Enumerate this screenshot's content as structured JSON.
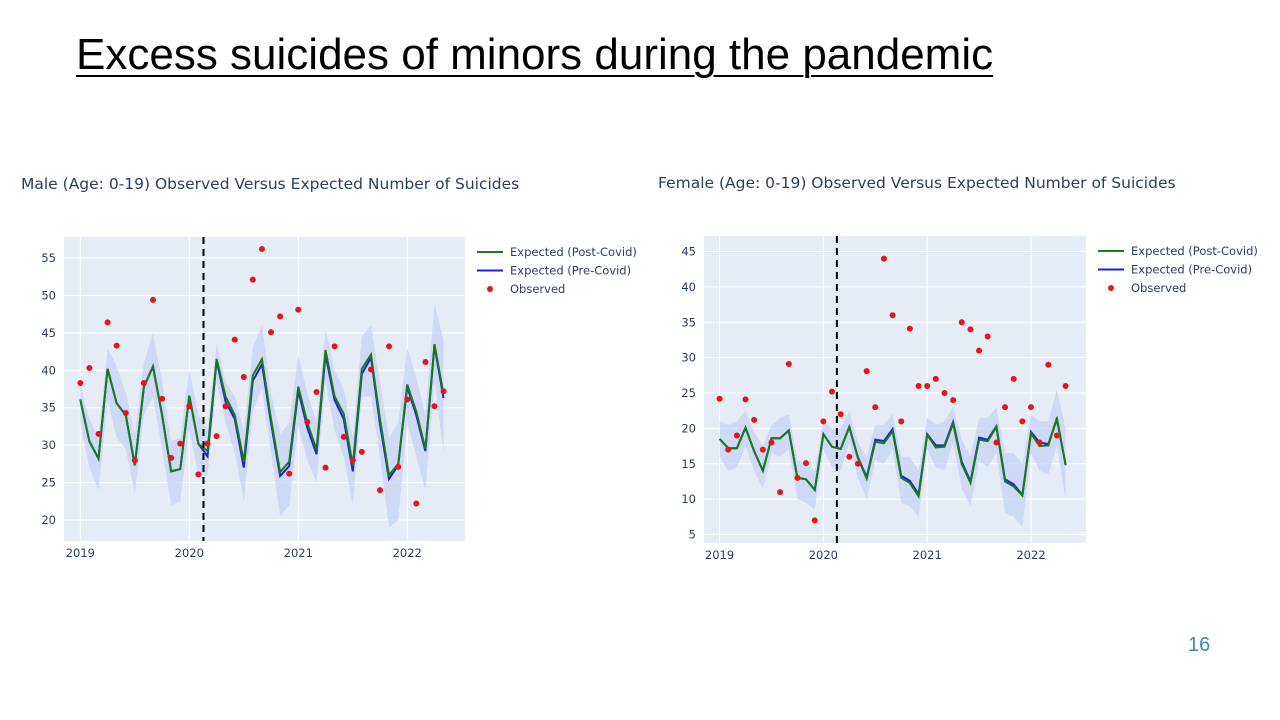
{
  "slide": {
    "title": "Excess suicides of minors during the pandemic",
    "page_number": "16"
  },
  "colors": {
    "plot_bg": "#e5ecf6",
    "grid": "#ffffff",
    "band": "#c6d3f5",
    "post_covid": "#1a7a1a",
    "pre_covid": "#1f1fd8",
    "observed": "#e8141a",
    "text": "#2a3f5f"
  },
  "chart_data": [
    {
      "type": "line",
      "title": "Male (Age: 0-19) Observed Versus Expected Number of Suicides",
      "x_ticks": [
        "2019",
        "2020",
        "2021",
        "2022"
      ],
      "y_ticks": [
        20,
        25,
        30,
        35,
        40,
        45,
        50,
        55
      ],
      "xlim": [
        2018.85,
        2022.53
      ],
      "ylim": [
        17.2,
        57.8
      ],
      "covid_start": 2020.13,
      "legend_position": "right",
      "grid": true,
      "x": [
        2019.0,
        2019.083,
        2019.167,
        2019.25,
        2019.333,
        2019.417,
        2019.5,
        2019.583,
        2019.667,
        2019.75,
        2019.833,
        2019.917,
        2020.0,
        2020.083,
        2020.167,
        2020.25,
        2020.333,
        2020.417,
        2020.5,
        2020.583,
        2020.667,
        2020.75,
        2020.833,
        2020.917,
        2021.0,
        2021.083,
        2021.167,
        2021.25,
        2021.333,
        2021.417,
        2021.5,
        2021.583,
        2021.667,
        2021.75,
        2021.833,
        2021.917,
        2022.0,
        2022.083,
        2022.167,
        2022.25,
        2022.333
      ],
      "series": [
        {
          "name": "Expected (Post-Covid)",
          "values": [
            36.1,
            30.5,
            28.2,
            40.2,
            35.6,
            34.0,
            27.3,
            37.8,
            40.5,
            34.0,
            26.5,
            26.8,
            36.6,
            30.2,
            29.2,
            41.5,
            36.5,
            34.0,
            27.8,
            39.3,
            41.5,
            33.5,
            26.4,
            27.8,
            37.8,
            33.0,
            29.4,
            42.7,
            36.5,
            34.2,
            27.3,
            40.2,
            42.1,
            33.5,
            26.0,
            27.5,
            38.1,
            34.5,
            29.5,
            43.5,
            36.8
          ]
        },
        {
          "name": "Expected (Pre-Covid)",
          "values": [
            36.1,
            30.5,
            28.2,
            40.2,
            35.6,
            34.0,
            27.3,
            37.8,
            40.5,
            34.0,
            26.5,
            26.8,
            36.6,
            30.2,
            28.5,
            41.3,
            35.8,
            33.5,
            27.0,
            38.6,
            40.8,
            33.0,
            25.9,
            27.2,
            37.3,
            32.3,
            28.8,
            42.1,
            36.0,
            33.5,
            26.5,
            39.5,
            41.7,
            32.8,
            25.5,
            27.3,
            37.8,
            34.0,
            29.2,
            43.3,
            36.3
          ]
        },
        {
          "name": "Observed",
          "values": [
            38.3,
            40.3,
            31.5,
            46.4,
            43.3,
            34.3,
            28.0,
            38.3,
            49.4,
            36.2,
            28.3,
            30.2,
            35.2,
            26.1,
            30.2,
            31.2,
            35.2,
            44.1,
            39.1,
            52.1,
            56.2,
            45.1,
            47.2,
            26.2,
            48.1,
            33.1,
            37.1,
            27.0,
            43.2,
            31.1,
            28.0,
            29.1,
            40.1,
            24.0,
            43.2,
            27.1,
            36.1,
            22.2,
            41.1,
            35.2,
            37.2
          ]
        }
      ],
      "band_upper": [
        38.0,
        33.5,
        31.0,
        43.0,
        40.5,
        37.0,
        31.5,
        41.0,
        45.0,
        38.5,
        30.5,
        31.0,
        40.0,
        34.0,
        32.0,
        43.5,
        38.5,
        36.5,
        32.0,
        43.0,
        46.0,
        37.0,
        31.5,
        33.0,
        42.0,
        37.0,
        33.0,
        45.5,
        40.0,
        37.5,
        31.0,
        44.5,
        46.0,
        38.5,
        31.0,
        33.0,
        43.0,
        39.0,
        34.0,
        49.0,
        44.0
      ],
      "band_lower": [
        33.0,
        27.0,
        24.0,
        36.0,
        31.0,
        29.5,
        23.5,
        34.0,
        36.5,
        29.5,
        22.0,
        22.5,
        32.0,
        26.0,
        26.0,
        38.5,
        33.0,
        29.0,
        22.5,
        34.5,
        37.5,
        29.0,
        20.5,
        22.0,
        32.5,
        28.0,
        25.0,
        38.5,
        32.0,
        28.5,
        22.0,
        36.5,
        36.5,
        28.5,
        19.0,
        20.0,
        33.0,
        28.5,
        24.0,
        38.5,
        29.0
      ]
    },
    {
      "type": "line",
      "title": "Female (Age: 0-19) Observed Versus Expected Number of Suicides",
      "x_ticks": [
        "2019",
        "2020",
        "2021",
        "2022"
      ],
      "y_ticks": [
        5,
        10,
        15,
        20,
        25,
        30,
        35,
        40,
        45
      ],
      "xlim": [
        2018.85,
        2022.53
      ],
      "ylim": [
        3.8,
        47.2
      ],
      "covid_start": 2020.13,
      "legend_position": "right",
      "grid": true,
      "x": [
        2019.0,
        2019.083,
        2019.167,
        2019.25,
        2019.333,
        2019.417,
        2019.5,
        2019.583,
        2019.667,
        2019.75,
        2019.833,
        2019.917,
        2020.0,
        2020.083,
        2020.167,
        2020.25,
        2020.333,
        2020.417,
        2020.5,
        2020.583,
        2020.667,
        2020.75,
        2020.833,
        2020.917,
        2021.0,
        2021.083,
        2021.167,
        2021.25,
        2021.333,
        2021.417,
        2021.5,
        2021.583,
        2021.667,
        2021.75,
        2021.833,
        2021.917,
        2022.0,
        2022.083,
        2022.167,
        2022.25,
        2022.333
      ],
      "series": [
        {
          "name": "Expected (Post-Covid)",
          "values": [
            18.5,
            17.2,
            17.2,
            20.1,
            16.8,
            14.0,
            18.6,
            18.6,
            19.7,
            13.0,
            12.8,
            11.3,
            19.2,
            17.4,
            17.1,
            20.2,
            15.8,
            12.9,
            18.1,
            17.9,
            19.6,
            13.0,
            12.3,
            10.4,
            19.1,
            17.3,
            17.4,
            20.7,
            15.0,
            12.3,
            18.4,
            18.2,
            20.2,
            12.5,
            11.8,
            10.5,
            19.3,
            17.5,
            17.6,
            21.5,
            14.8
          ]
        },
        {
          "name": "Expected (Pre-Covid)",
          "values": [
            18.5,
            17.2,
            17.2,
            20.1,
            16.8,
            14.0,
            18.6,
            18.6,
            19.7,
            13.0,
            12.8,
            11.3,
            19.2,
            17.4,
            17.1,
            20.2,
            15.9,
            13.1,
            18.4,
            18.2,
            19.9,
            13.3,
            12.6,
            10.7,
            19.2,
            17.6,
            17.6,
            20.9,
            15.3,
            12.5,
            18.7,
            18.4,
            20.3,
            12.8,
            12.1,
            10.6,
            19.5,
            18.0,
            17.8,
            21.3,
            14.9
          ]
        },
        {
          "name": "Observed",
          "values": [
            24.2,
            17.0,
            19.0,
            24.1,
            21.2,
            17.0,
            18.0,
            11.0,
            29.1,
            13.0,
            15.1,
            7.0,
            21.0,
            25.2,
            22.0,
            16.0,
            15.0,
            28.1,
            23.0,
            44.0,
            36.0,
            21.0,
            34.1,
            26.0,
            26.0,
            27.0,
            25.0,
            24.0,
            35.0,
            34.0,
            31.0,
            33.0,
            18.0,
            23.0,
            27.0,
            21.0,
            23.0,
            18.0,
            29.0,
            19.0,
            26.0
          ]
        }
      ],
      "band_upper": [
        21.0,
        20.5,
        21.0,
        22.5,
        19.5,
        17.5,
        20.5,
        21.5,
        22.0,
        15.5,
        15.0,
        14.0,
        21.0,
        20.0,
        20.0,
        22.5,
        18.0,
        16.0,
        20.5,
        20.5,
        22.0,
        16.0,
        16.0,
        14.0,
        21.5,
        20.5,
        21.0,
        23.0,
        18.5,
        16.0,
        21.5,
        21.5,
        23.0,
        16.5,
        16.5,
        15.0,
        22.0,
        21.0,
        21.0,
        25.5,
        20.0
      ],
      "band_lower": [
        16.0,
        14.0,
        14.5,
        17.5,
        14.0,
        11.5,
        16.5,
        16.0,
        17.0,
        10.0,
        9.5,
        8.5,
        17.0,
        14.5,
        14.0,
        18.0,
        13.0,
        10.0,
        15.5,
        15.0,
        17.0,
        9.5,
        9.0,
        7.5,
        17.0,
        14.5,
        14.0,
        18.0,
        11.5,
        9.0,
        15.5,
        14.5,
        16.5,
        8.0,
        7.5,
        6.0,
        16.5,
        14.0,
        13.5,
        17.5,
        10.0
      ]
    }
  ]
}
